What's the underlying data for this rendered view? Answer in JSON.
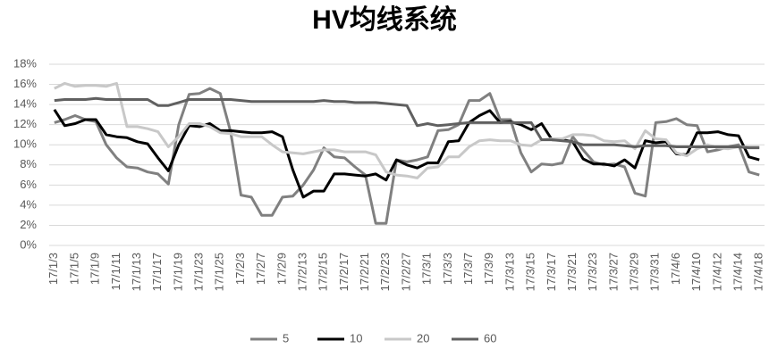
{
  "chart_data": {
    "type": "line",
    "title": "HV均线系统",
    "categories": [
      "17/1/3",
      null,
      "17/1/5",
      null,
      "17/1/9",
      null,
      "17/1/11",
      null,
      "17/1/13",
      null,
      "17/1/17",
      null,
      "17/1/19",
      null,
      "17/1/23",
      null,
      "17/1/25",
      null,
      "17/2/3",
      null,
      "17/2/7",
      null,
      "17/2/9",
      null,
      "17/2/13",
      null,
      "17/2/15",
      null,
      "17/2/17",
      null,
      "17/2/21",
      null,
      "17/2/23",
      null,
      "17/2/27",
      null,
      "17/3/1",
      null,
      "17/3/3",
      null,
      "17/3/7",
      null,
      "17/3/9",
      null,
      "17/3/13",
      null,
      "17/3/15",
      null,
      "17/3/17",
      null,
      "17/3/21",
      null,
      "17/3/23",
      null,
      "17/3/27",
      null,
      "17/3/29",
      null,
      "17/3/31",
      null,
      "17/4/6",
      null,
      "17/4/10",
      null,
      "17/4/12",
      null,
      "17/4/14",
      null,
      "17/4/18"
    ],
    "series": [
      {
        "name": "5",
        "color": "#808080",
        "values": [
          12.2,
          12.5,
          12.9,
          12.5,
          12.3,
          10,
          8.7,
          7.8,
          7.7,
          7.3,
          7.1,
          6.1,
          12,
          15,
          15.1,
          15.6,
          15.1,
          11.3,
          5,
          4.8,
          3.0,
          3.0,
          4.8,
          4.9,
          6.0,
          7.5,
          9.7,
          8.8,
          8.7,
          7.8,
          7.0,
          2.2,
          2.2,
          8.5,
          8.3,
          8.5,
          8.8,
          11.4,
          11.5,
          12.0,
          14.4,
          14.4,
          15.1,
          12.5,
          12.5,
          9.2,
          7.3,
          8.1,
          8.0,
          8.2,
          10.8,
          9.5,
          8.3,
          8.0,
          8.1,
          7.8,
          5.2,
          4.9,
          12.2,
          12.3,
          12.6,
          12.0,
          11.9,
          9.3,
          9.5,
          9.8,
          10.0,
          7.3,
          7.0
        ]
      },
      {
        "name": "10",
        "color": "#000000",
        "values": [
          13.5,
          11.9,
          12.1,
          12.5,
          12.5,
          11.0,
          10.8,
          10.7,
          10.3,
          10.1,
          8.7,
          7.4,
          10.0,
          11.9,
          11.8,
          12.1,
          11.4,
          11.4,
          11.3,
          11.2,
          11.2,
          11.3,
          10.8,
          7.5,
          4.8,
          5.4,
          5.4,
          7.1,
          7.1,
          7.0,
          6.9,
          7.1,
          6.5,
          8.5,
          8.0,
          7.7,
          8.2,
          8.2,
          10.3,
          10.4,
          12.2,
          12.9,
          13.4,
          12.2,
          12.3,
          12.0,
          11.5,
          12.1,
          10.5,
          10.5,
          10.3,
          8.6,
          8.1,
          8.1,
          7.9,
          8.5,
          7.7,
          10.4,
          10.2,
          10.3,
          9.1,
          9.0,
          11.2,
          11.2,
          11.3,
          11.0,
          10.9,
          8.8,
          8.5
        ]
      },
      {
        "name": "20",
        "color": "#c8c8c8",
        "values": [
          15.6,
          16.1,
          15.8,
          15.9,
          15.9,
          15.8,
          16.1,
          11.8,
          11.8,
          11.6,
          11.3,
          9.8,
          10.8,
          12.1,
          12.1,
          11.8,
          11.2,
          11.1,
          10.8,
          10.8,
          10.8,
          10.0,
          9.3,
          9.2,
          9.1,
          9.3,
          9.5,
          9.5,
          9.3,
          9.3,
          9.3,
          9.0,
          7.3,
          7.0,
          6.9,
          6.7,
          7.7,
          7.8,
          8.8,
          8.8,
          9.8,
          10.4,
          10.5,
          10.4,
          10.4,
          10.0,
          9.9,
          10.5,
          10.6,
          10.6,
          11.0,
          11.0,
          10.9,
          10.4,
          10.3,
          10.4,
          9.6,
          11.4,
          10.6,
          10.5,
          9.2,
          8.9,
          9.6,
          10.0,
          9.7,
          9.6,
          9.8,
          9.8,
          9.8
        ]
      },
      {
        "name": "60",
        "color": "#606060",
        "values": [
          14.4,
          14.5,
          14.5,
          14.5,
          14.6,
          14.5,
          14.5,
          14.5,
          14.5,
          14.5,
          13.9,
          13.9,
          14.2,
          14.5,
          14.5,
          14.5,
          14.5,
          14.5,
          14.4,
          14.3,
          14.3,
          14.3,
          14.3,
          14.3,
          14.3,
          14.3,
          14.4,
          14.3,
          14.3,
          14.2,
          14.2,
          14.2,
          14.1,
          14.0,
          13.9,
          11.9,
          12.1,
          11.9,
          12.0,
          12.1,
          12.2,
          12.2,
          12.2,
          12.2,
          12.2,
          12.2,
          12.2,
          10.5,
          10.5,
          10.4,
          10.3,
          10.0,
          10.0,
          10.0,
          10.0,
          9.9,
          9.8,
          9.9,
          9.9,
          9.9,
          9.8,
          9.8,
          9.8,
          9.8,
          9.8,
          9.8,
          9.8,
          9.7,
          9.7
        ]
      }
    ],
    "ylim": [
      0,
      18
    ],
    "yticks": [
      {
        "value": 0,
        "label": "0%"
      },
      {
        "value": 2,
        "label": "2%"
      },
      {
        "value": 4,
        "label": "4%"
      },
      {
        "value": 6,
        "label": "6%"
      },
      {
        "value": 8,
        "label": "8%"
      },
      {
        "value": 10,
        "label": "10%"
      },
      {
        "value": 12,
        "label": "12%"
      },
      {
        "value": 14,
        "label": "14%"
      },
      {
        "value": 16,
        "label": "16%"
      },
      {
        "value": 18,
        "label": "18%"
      }
    ],
    "grid": true,
    "legend": "bottom"
  }
}
